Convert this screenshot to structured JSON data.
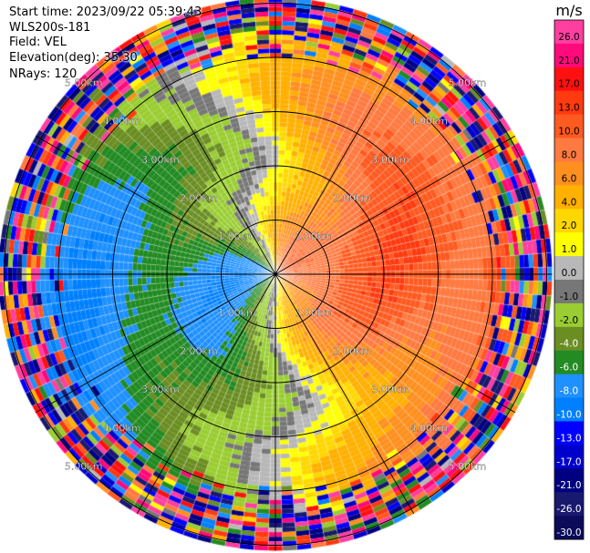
{
  "info": {
    "start_time": "Start time: 2023/09/22 05:39:43",
    "instrument": "WLS200s-181",
    "field": "Field: VEL",
    "elevation": "Elevation(deg): 35.30",
    "nrays": "NRays: 120"
  },
  "chart_data": {
    "type": "heatmap",
    "projection": "polar-ppi",
    "title": "",
    "n_rays": 120,
    "range_unit": "km",
    "range_rings": [
      1.0,
      2.0,
      3.0,
      4.0,
      5.0
    ],
    "range_ring_labels": [
      "1.00km",
      "2.00km",
      "3.00km",
      "4.00km",
      "5.00km"
    ],
    "max_range_km": 5.1,
    "spokes_deg": [
      0,
      30,
      60,
      90,
      120,
      150,
      180,
      210,
      240,
      270,
      300,
      330
    ],
    "colorbar": {
      "unit": "m/s",
      "ticks": [
        "26.0",
        "21.0",
        "17.0",
        "13.0",
        "10.0",
        "8.0",
        "6.0",
        "4.0",
        "2.0",
        "1.0",
        "0.0",
        "-1.0",
        "-2.0",
        "-4.0",
        "-6.0",
        "-8.0",
        "-10.0",
        "-13.0",
        "-17.0",
        "-21.0",
        "-26.0",
        "-30.0"
      ],
      "colors": [
        "#ff3fa0",
        "#ff0a7a",
        "#ff1010",
        "#ff3a10",
        "#ff5a20",
        "#ff7a40",
        "#ff9020",
        "#ffb000",
        "#ffd700",
        "#ffff00",
        "#b8b8b8",
        "#777777",
        "#9acd32",
        "#6b8e23",
        "#228b22",
        "#1e90ff",
        "#0080ff",
        "#0000ff",
        "#0000cd",
        "#000080",
        "#191970",
        "#0b0b5a"
      ]
    },
    "field": "VEL",
    "pattern": "mean wind from west-southwest toward east-northeast; negative (toward) velocities on the west half, positive (away) velocities on the east half, near-zero band along the north-south axis; noisy multicolor returns beyond about 4 km"
  }
}
